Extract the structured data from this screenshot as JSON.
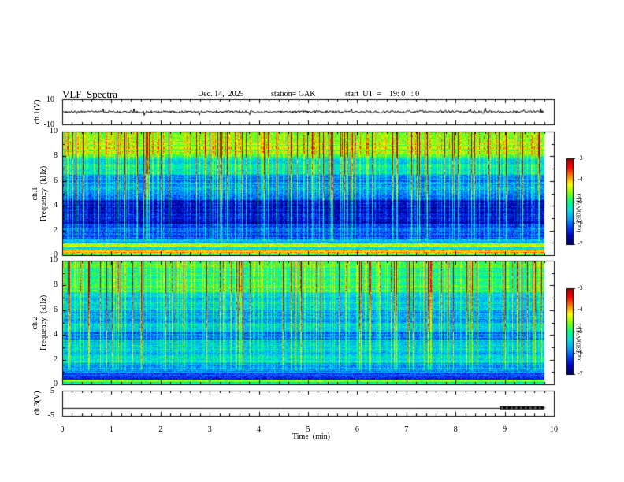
{
  "header": {
    "title": "VLF  Spectra",
    "date": "Dec. 14,  2025",
    "station": "station= GAK",
    "start": "start  UT  =    19: 0   : 0"
  },
  "colors": {
    "colormap": [
      "#000060",
      "#0000c0",
      "#0040ff",
      "#00a0ff",
      "#00e0e0",
      "#00ff80",
      "#80ff00",
      "#ffff00",
      "#ff8000",
      "#ff0000",
      "#a00000"
    ]
  },
  "chart_data": [
    {
      "type": "line",
      "name": "ch1-voltage",
      "ylabel": "ch.1(V)",
      "xlim": [
        0,
        10
      ],
      "ylim": [
        -10,
        10
      ],
      "yticks": [
        "10",
        "-10"
      ],
      "x_range": [
        0,
        9.8
      ],
      "level": 0,
      "fluctuation": 1.0
    },
    {
      "type": "heatmap",
      "name": "ch1-spectrogram",
      "ylabel_line1": "ch.1",
      "ylabel_line2": "Frequency  (kHz)",
      "xlim": [
        0,
        10
      ],
      "ylim": [
        0,
        10
      ],
      "yticks": [
        "0",
        "2",
        "4",
        "6",
        "8",
        "10"
      ],
      "colorbar": {
        "label": "log(PSD)(V²/Hz)",
        "ticks": [
          "-3",
          "-4",
          "-5",
          "-6",
          "-7"
        ],
        "range": [
          -7,
          -3
        ]
      },
      "bands_khz": [
        {
          "from": 0.0,
          "to": 0.15,
          "value": -5.0
        },
        {
          "from": 0.15,
          "to": 0.45,
          "value": -4.0
        },
        {
          "from": 0.45,
          "to": 0.7,
          "value": -5.3
        },
        {
          "from": 0.7,
          "to": 1.0,
          "value": -4.3
        },
        {
          "from": 1.0,
          "to": 1.3,
          "value": -5.6
        },
        {
          "from": 1.3,
          "to": 2.5,
          "value": -6.2
        },
        {
          "from": 2.5,
          "to": 4.5,
          "value": -6.6
        },
        {
          "from": 4.5,
          "to": 5.2,
          "value": -6.1
        },
        {
          "from": 5.2,
          "to": 6.5,
          "value": -5.9
        },
        {
          "from": 6.5,
          "to": 8.0,
          "value": -5.4
        },
        {
          "from": 8.0,
          "to": 10.0,
          "value": -4.6
        }
      ]
    },
    {
      "type": "heatmap",
      "name": "ch2-spectrogram",
      "ylabel_line1": "ch.2",
      "ylabel_line2": "Frequency  (kHz)",
      "xlim": [
        0,
        10
      ],
      "ylim": [
        0,
        10
      ],
      "yticks": [
        "0",
        "2",
        "4",
        "6",
        "8",
        "10"
      ],
      "colorbar": {
        "label": "log(PSD)(V²/Hz)",
        "ticks": [
          "-3",
          "-4",
          "-5",
          "-6",
          "-7"
        ],
        "range": [
          -7,
          -3
        ]
      },
      "bands_khz": [
        {
          "from": 0.0,
          "to": 0.2,
          "value": -5.2
        },
        {
          "from": 0.2,
          "to": 0.4,
          "value": -4.5
        },
        {
          "from": 0.4,
          "to": 1.0,
          "value": -6.3
        },
        {
          "from": 1.0,
          "to": 1.8,
          "value": -5.8
        },
        {
          "from": 1.8,
          "to": 2.4,
          "value": -5.4
        },
        {
          "from": 2.4,
          "to": 3.6,
          "value": -5.6
        },
        {
          "from": 3.6,
          "to": 4.3,
          "value": -6.0
        },
        {
          "from": 4.3,
          "to": 5.0,
          "value": -5.5
        },
        {
          "from": 5.0,
          "to": 6.0,
          "value": -5.8
        },
        {
          "from": 6.0,
          "to": 7.5,
          "value": -5.5
        },
        {
          "from": 7.5,
          "to": 10.0,
          "value": -5.0
        }
      ]
    },
    {
      "type": "line",
      "name": "ch3-voltage",
      "ylabel": "ch.3(V)",
      "xlim": [
        0,
        10
      ],
      "ylim": [
        -5,
        5
      ],
      "yticks": [
        "5",
        "-5"
      ],
      "x_range": [
        0,
        9.8
      ],
      "level": -2,
      "high_level": -1.8,
      "high_from": 8.9
    }
  ],
  "xaxis": {
    "label": "Time  (min)",
    "ticks": [
      "0",
      "1",
      "2",
      "3",
      "4",
      "5",
      "6",
      "7",
      "8",
      "9",
      "10"
    ]
  }
}
